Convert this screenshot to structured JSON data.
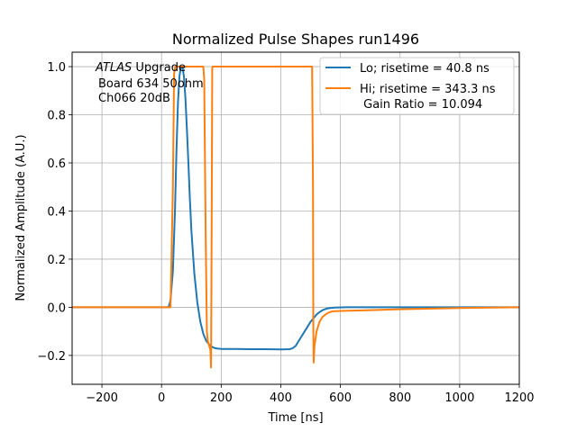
{
  "chart_data": {
    "type": "line",
    "title": "Normalized Pulse Shapes run1496",
    "xlabel": "Time [ns]",
    "ylabel": "Normalized Amplitude (A.U.)",
    "xlim": [
      -300,
      1200
    ],
    "ylim": [
      -0.32,
      1.06
    ],
    "grid": true,
    "x_ticks": [
      -200,
      0,
      200,
      400,
      600,
      800,
      1000,
      1200
    ],
    "x_tick_labels": [
      "−200",
      "0",
      "200",
      "400",
      "600",
      "800",
      "1000",
      "1200"
    ],
    "y_ticks": [
      -0.2,
      0.0,
      0.2,
      0.4,
      0.6,
      0.8,
      1.0
    ],
    "y_tick_labels": [
      "−0.2",
      "0.0",
      "0.2",
      "0.4",
      "0.6",
      "0.8",
      "1.0"
    ],
    "legend_placement": "top-right",
    "annotation": {
      "italic": "ATLAS",
      "rest": " Upgrade",
      "line2": "Board 634 50ohm",
      "line3": "Ch066 20dB"
    },
    "series": [
      {
        "name": "Lo; risetime = 40.8 ns",
        "color": "#1f77b4",
        "x": [
          -300,
          20,
          25,
          30,
          38,
          45,
          50,
          55,
          60,
          65,
          70,
          75,
          80,
          85,
          90,
          95,
          100,
          110,
          120,
          130,
          140,
          150,
          160,
          170,
          180,
          190,
          200,
          250,
          300,
          350,
          400,
          430,
          440,
          450,
          460,
          470,
          480,
          490,
          500,
          510,
          520,
          530,
          540,
          550,
          560,
          580,
          620,
          700,
          800,
          1000,
          1200
        ],
        "values": [
          0.0,
          0.0,
          0.005,
          0.03,
          0.15,
          0.4,
          0.65,
          0.85,
          0.96,
          1.0,
          1.0,
          0.96,
          0.87,
          0.74,
          0.6,
          0.45,
          0.32,
          0.14,
          0.02,
          -0.06,
          -0.11,
          -0.14,
          -0.155,
          -0.165,
          -0.17,
          -0.172,
          -0.173,
          -0.173,
          -0.174,
          -0.174,
          -0.175,
          -0.174,
          -0.17,
          -0.16,
          -0.14,
          -0.12,
          -0.1,
          -0.08,
          -0.06,
          -0.045,
          -0.03,
          -0.02,
          -0.012,
          -0.007,
          -0.004,
          -0.001,
          0.0,
          0.0,
          0.0,
          0.0,
          0.0
        ]
      },
      {
        "name": "Hi; risetime = 343.3 ns",
        "color": "#ff7f0e",
        "x": [
          -300,
          30,
          38,
          42,
          46,
          140,
          143,
          148,
          152,
          155,
          160,
          164,
          166,
          168,
          170,
          171,
          173,
          175,
          505,
          508,
          509,
          510,
          513,
          520,
          530,
          540,
          550,
          560,
          570,
          580,
          600,
          700,
          800,
          1000,
          1200
        ],
        "values": [
          0.0,
          0.0,
          0.5,
          0.97,
          1.0,
          1.0,
          0.95,
          0.3,
          -0.1,
          -0.14,
          -0.16,
          -0.18,
          -0.25,
          0.3,
          0.99,
          1.0,
          1.0,
          1.0,
          1.0,
          0.5,
          -0.05,
          -0.23,
          -0.16,
          -0.1,
          -0.06,
          -0.04,
          -0.03,
          -0.022,
          -0.018,
          -0.016,
          -0.015,
          -0.012,
          -0.008,
          -0.003,
          0.0
        ]
      }
    ],
    "legend_extra": " Gain Ratio = 10.094"
  }
}
